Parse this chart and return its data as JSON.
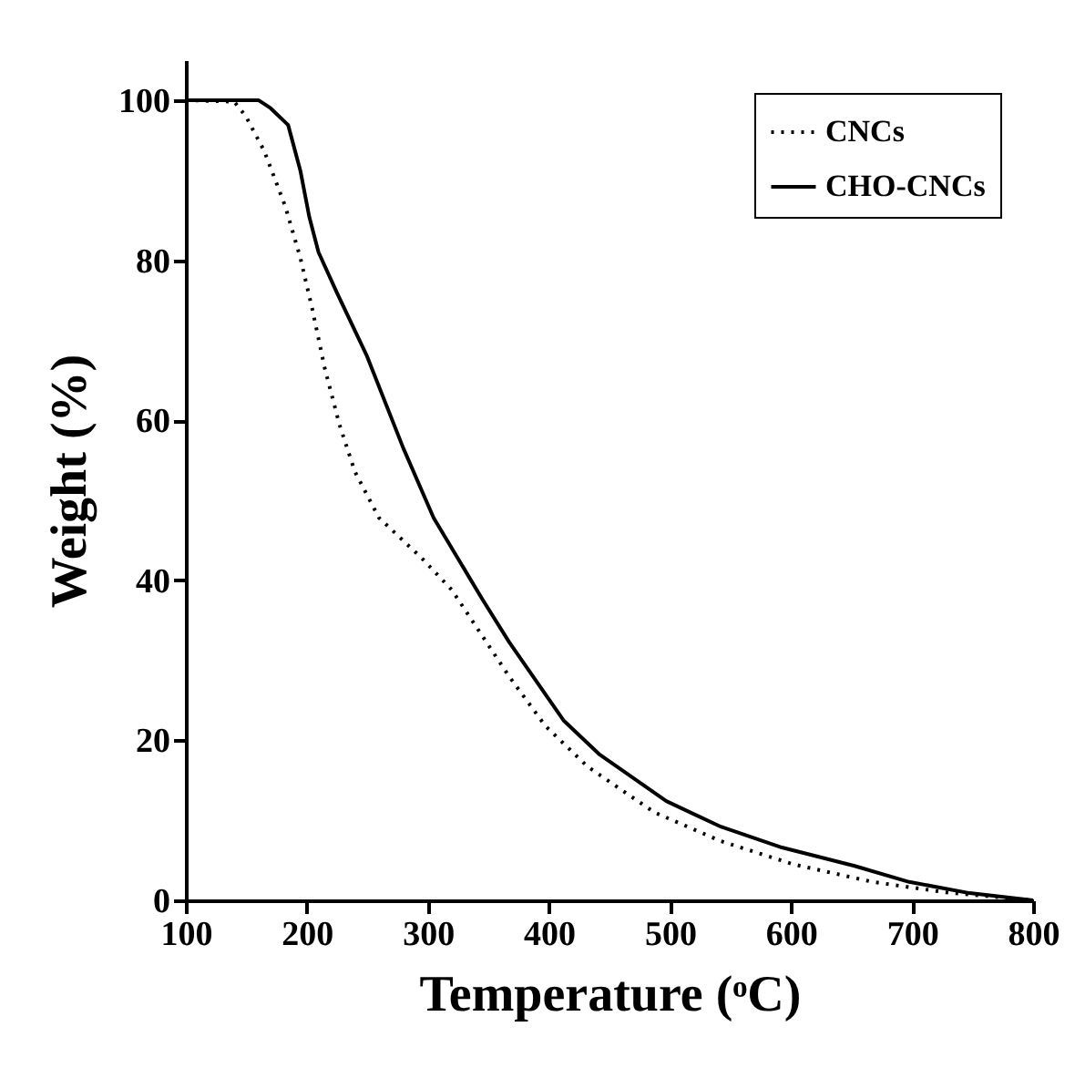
{
  "chart_data": {
    "type": "line",
    "xlabel": "Temperature (ᵒC)",
    "ylabel": "Weight (%)",
    "xlim": [
      100,
      800
    ],
    "xticks": [
      100,
      200,
      300,
      400,
      500,
      600,
      700,
      800
    ],
    "ylim": [
      0,
      105
    ],
    "yticks": [
      0,
      20,
      40,
      60,
      80,
      100
    ],
    "grid": false,
    "legend": "top right",
    "marker": "none",
    "series": [
      {
        "name": "CNCs",
        "color": "#000000",
        "line_style": "dotted",
        "x": [
          100,
          140,
          149.5,
          164.6,
          182,
          194.6,
          204.6,
          214.6,
          227,
          239.6,
          259.6,
          294.7,
          319.7,
          367,
          397,
          432,
          487,
          542,
          602,
          667.5,
          727.6,
          800
        ],
        "values": [
          100,
          99.8,
          98,
          93.7,
          86.8,
          80.3,
          73.8,
          66.6,
          59.4,
          53.6,
          47.8,
          42.8,
          38.8,
          28,
          21.8,
          16.7,
          11,
          7.4,
          4.5,
          2.3,
          1,
          0
        ]
      },
      {
        "name": "CHO-CNCs",
        "color": "#000000",
        "line_style": "solid",
        "x": [
          100,
          160,
          170,
          184.5,
          194.6,
          202,
          209.6,
          224.6,
          249.7,
          279.7,
          304.7,
          344.7,
          367,
          412,
          442,
          497,
          542,
          592.5,
          652.5,
          697.6,
          747.6,
          800
        ],
        "values": [
          100,
          100,
          99,
          96.9,
          91.2,
          85.4,
          81,
          76,
          68,
          56.5,
          47.8,
          37.7,
          32.3,
          22.5,
          18.2,
          12.4,
          9.2,
          6.6,
          4.3,
          2.3,
          0.9,
          0
        ]
      }
    ]
  }
}
